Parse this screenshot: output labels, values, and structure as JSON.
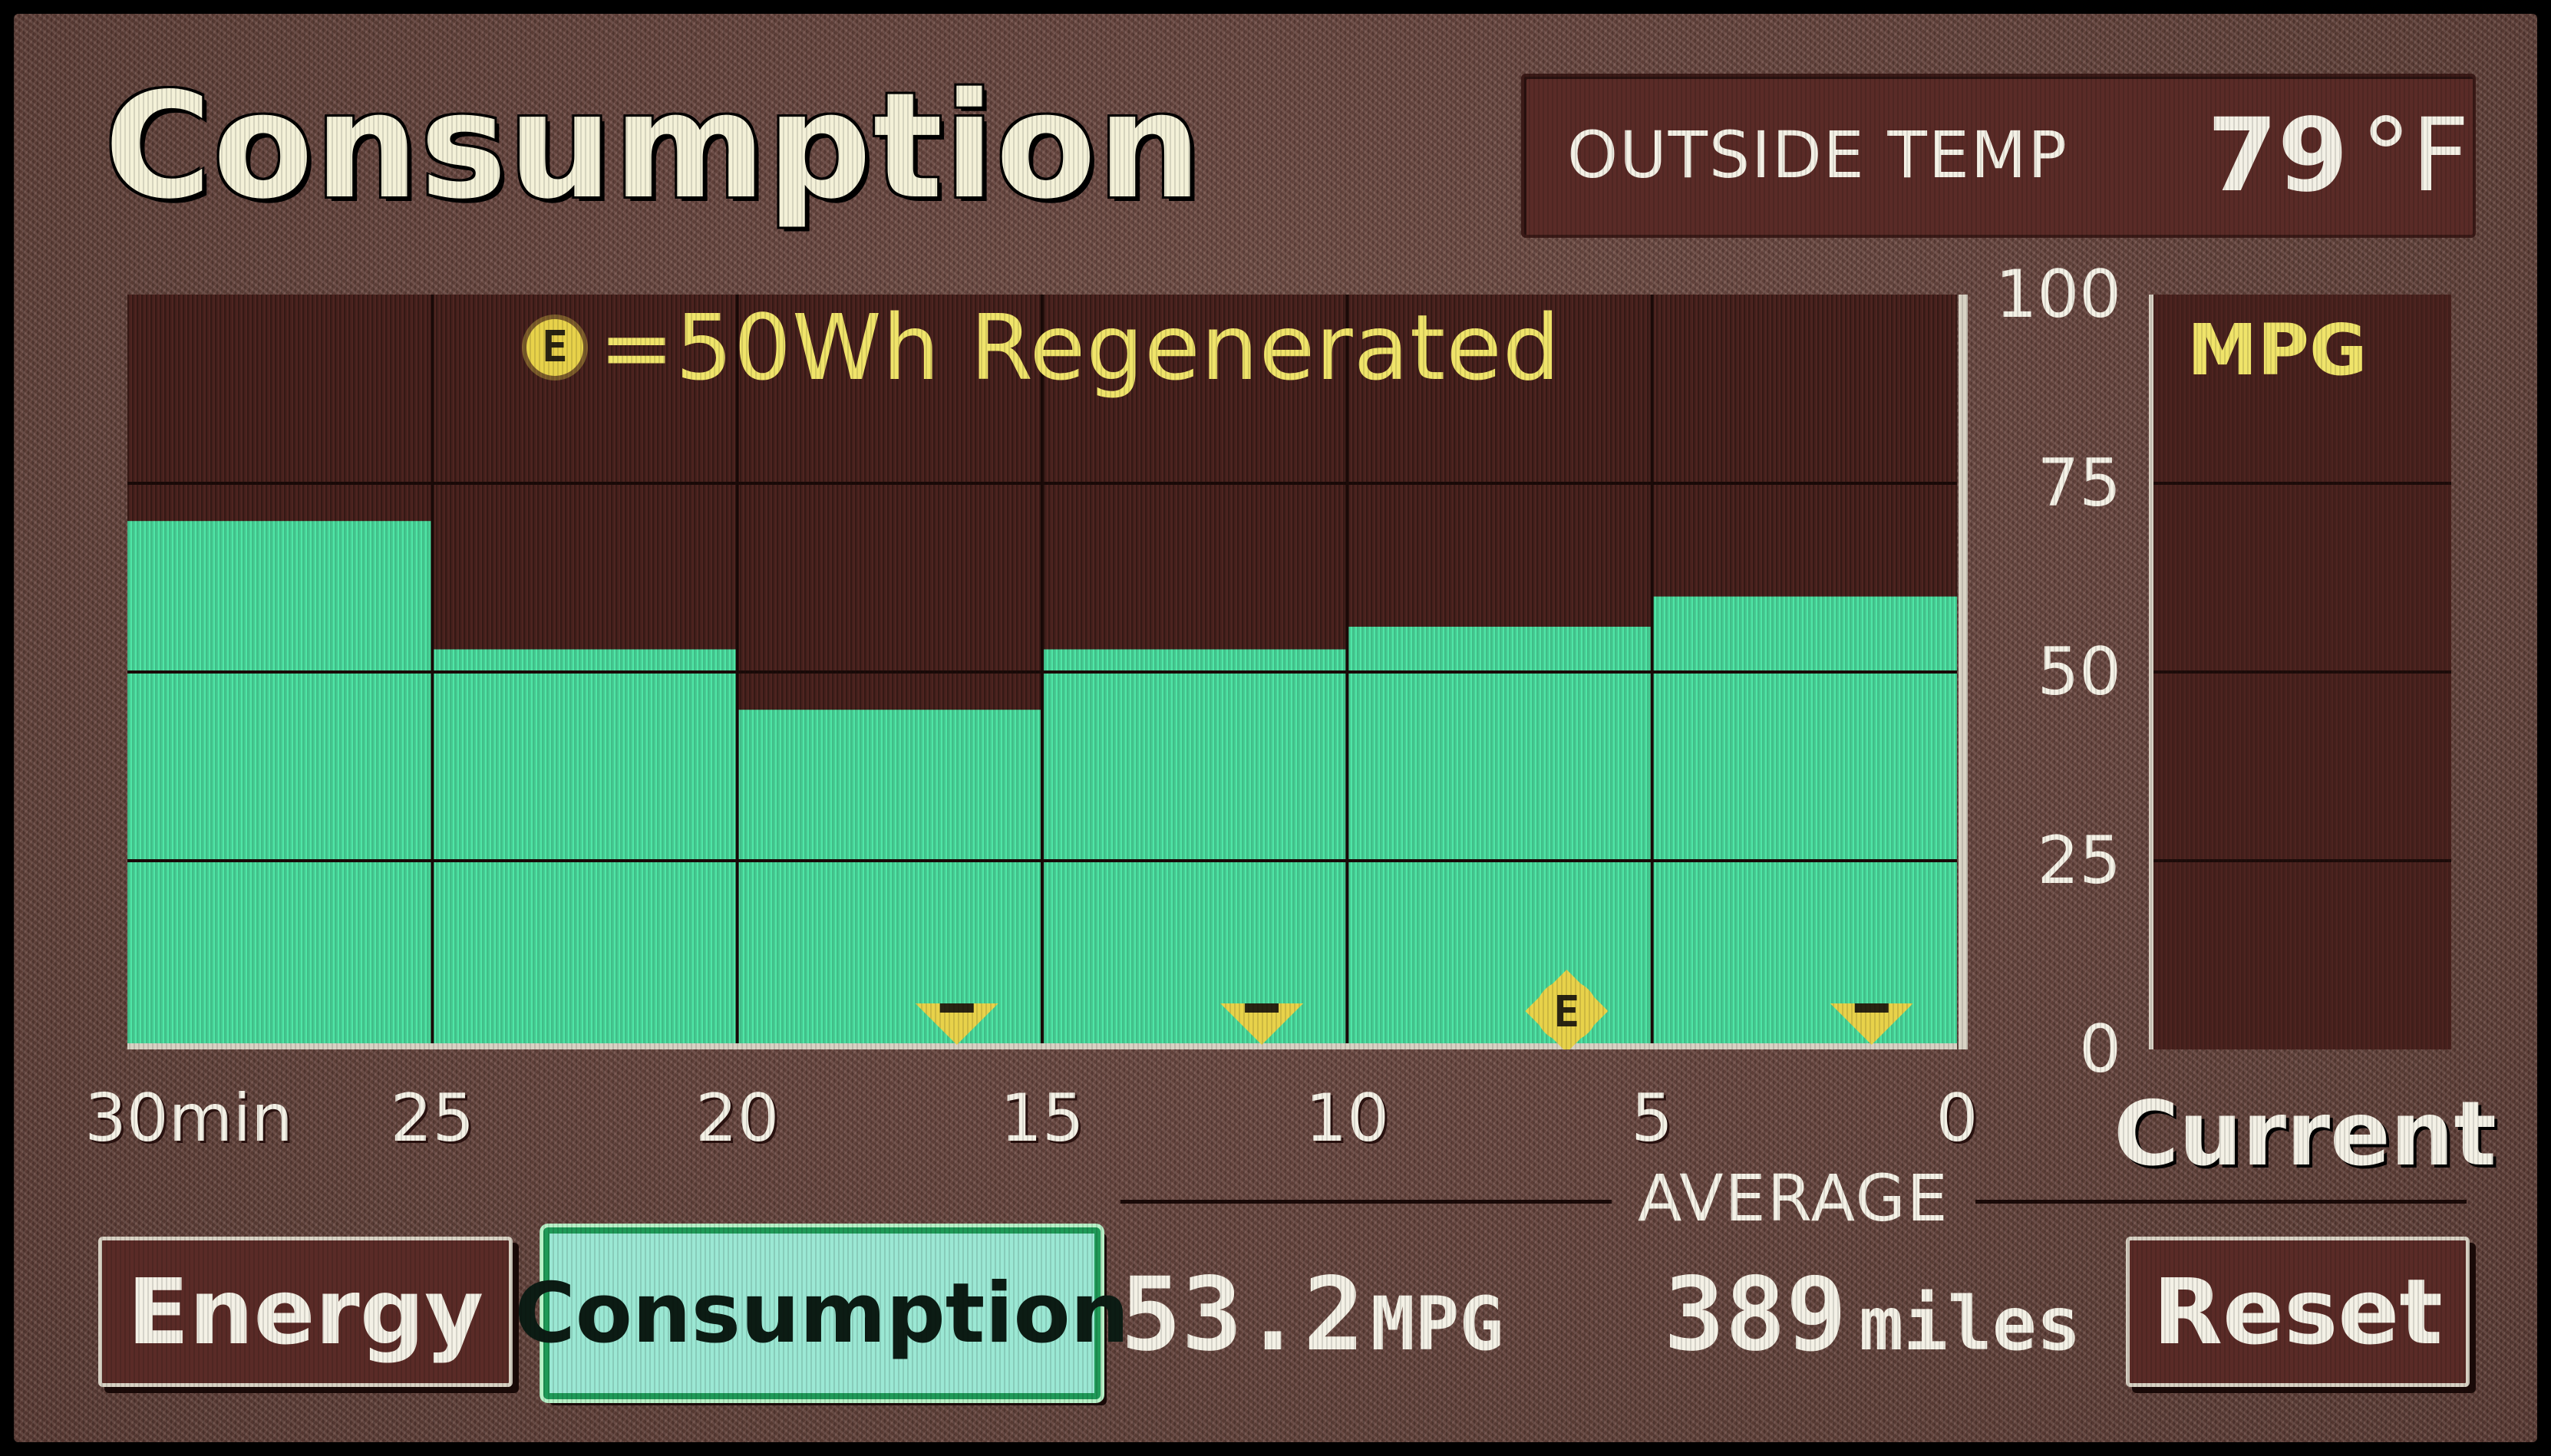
{
  "header": {
    "title": "Consumption",
    "outside_temp_label": "OUTSIDE TEMP",
    "outside_temp_value": "79",
    "outside_temp_unit": "°F"
  },
  "legend": {
    "regen_icon_letter": "E",
    "regen_text": "=50Wh Regenerated"
  },
  "mpg_panel": {
    "label": "MPG",
    "current_label": "Current",
    "current_value": 0
  },
  "average": {
    "label": "AVERAGE",
    "mpg_value": "53.2",
    "mpg_unit": "MPG",
    "miles_value": "389",
    "miles_unit": "miles"
  },
  "buttons": {
    "energy": "Energy",
    "consumption": "Consumption",
    "reset": "Reset"
  },
  "colors": {
    "bar": "#4fe6a6",
    "panel": "#4e2420",
    "coin": "#e8d24a"
  },
  "chart_data": {
    "type": "bar",
    "categories": [
      "30min-25",
      "25-20",
      "20-15",
      "15-10",
      "10-5",
      "5-0"
    ],
    "values": [
      70,
      53,
      45,
      53,
      56,
      60
    ],
    "regen_coins": [
      0,
      0,
      1,
      1,
      1,
      1
    ],
    "regen_coin_kind": [
      "",
      "",
      "half",
      "half",
      "full",
      "half"
    ],
    "x_tick_labels": [
      "30min",
      "25",
      "20",
      "15",
      "10",
      "5",
      "0"
    ],
    "y_tick_labels": [
      "100",
      "75",
      "50",
      "25",
      "0"
    ],
    "ylim": [
      0,
      100
    ],
    "grid": true
  }
}
